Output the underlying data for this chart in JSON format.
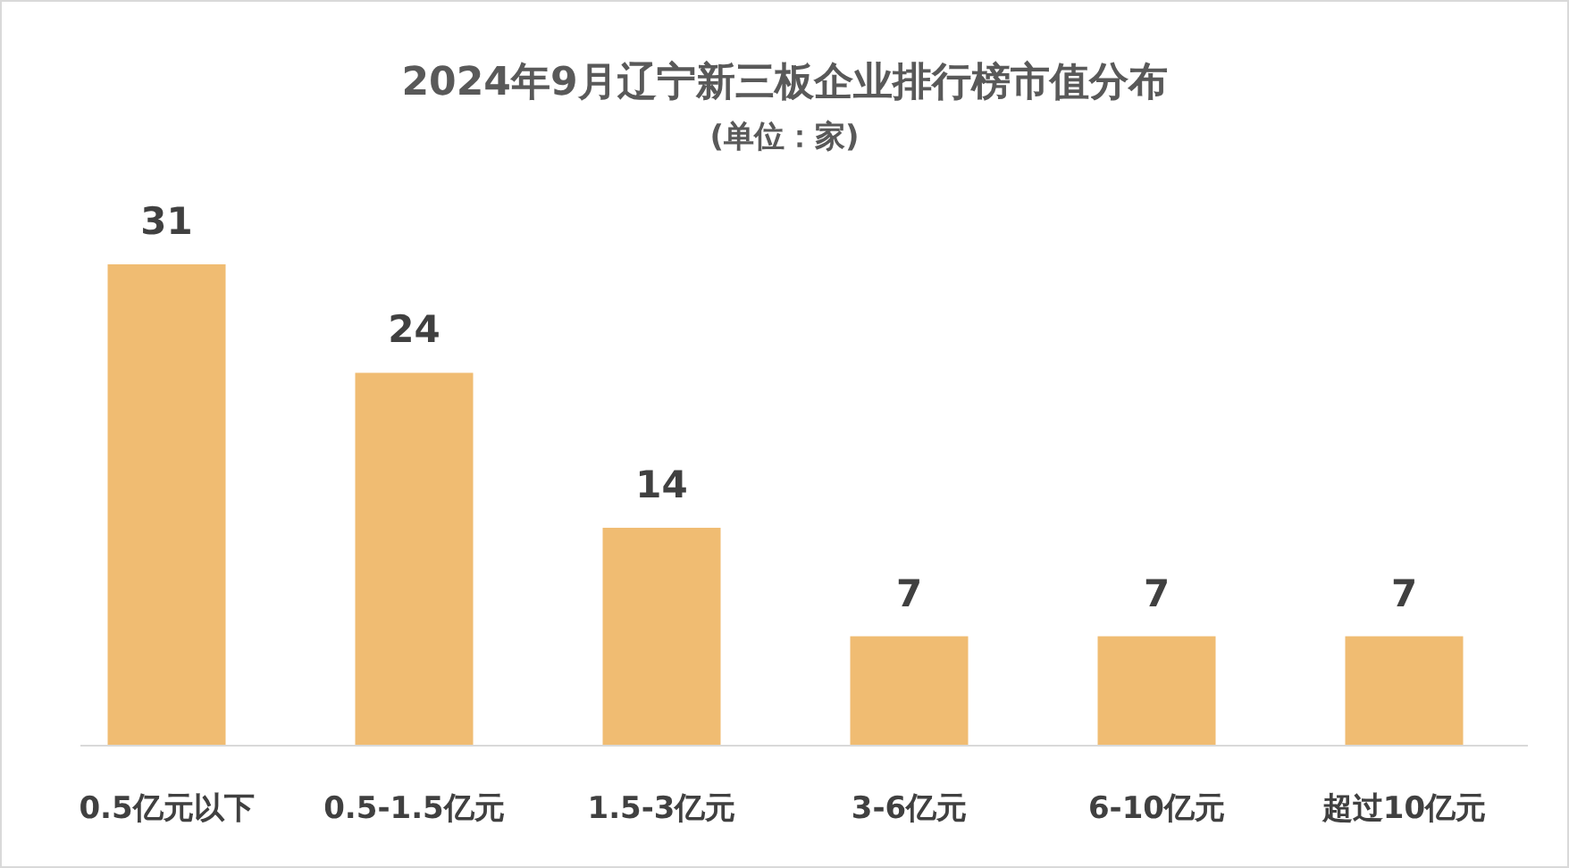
{
  "chart_data": {
    "type": "bar",
    "title": "2024年9月辽宁新三板企业排行榜市值分布",
    "subtitle": "(单位：家)",
    "categories": [
      "0.5亿元以下",
      "0.5-1.5亿元",
      "1.5-3亿元",
      "3-6亿元",
      "6-10亿元",
      "超过10亿元"
    ],
    "values": [
      31,
      24,
      14,
      7,
      7,
      7
    ],
    "color": "#f0bc72",
    "data_labels": true
  }
}
